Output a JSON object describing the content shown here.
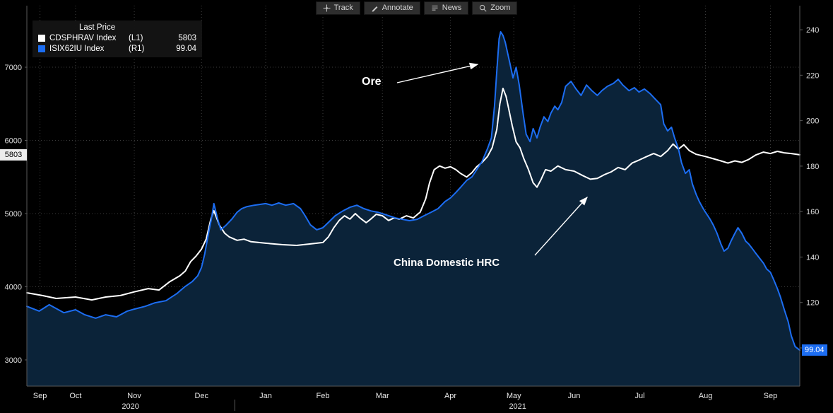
{
  "toolbar": {
    "buttons": [
      {
        "label": "Track"
      },
      {
        "label": "Annotate"
      },
      {
        "label": "News"
      },
      {
        "label": "Zoom"
      }
    ]
  },
  "legend": {
    "title": "Last Price",
    "series": [
      {
        "name": "CDSPHRAV Index",
        "axis": "(L1)",
        "value": "5803",
        "color": "#ffffff"
      },
      {
        "name": "ISIX62IU Index",
        "axis": "(R1)",
        "value": "99.04",
        "color": "#1c6df2"
      }
    ]
  },
  "badges": {
    "left": {
      "value": "5803"
    },
    "right": {
      "value": "99.04"
    }
  },
  "chart_data": {
    "type": "line",
    "title": "",
    "annotations": [
      {
        "text": "Ore"
      },
      {
        "text": "China Domestic HRC"
      }
    ],
    "axes": {
      "left": {
        "ticks": [
          3000,
          4000,
          5000,
          6000,
          7000
        ],
        "domain": [
          2642,
          7841
        ]
      },
      "right": {
        "ticks": [
          100,
          120,
          140,
          160,
          180,
          200,
          220,
          240
        ],
        "domain": [
          83.2,
          250.6
        ]
      }
    },
    "x_ticks": [
      {
        "label": "Sep",
        "f": 0.017
      },
      {
        "label": "Oct",
        "f": 0.063
      },
      {
        "label": "Nov",
        "f": 0.139
      },
      {
        "label": "Dec",
        "f": 0.226
      },
      {
        "label": "Jan",
        "f": 0.309
      },
      {
        "label": "Feb",
        "f": 0.383
      },
      {
        "label": "Mar",
        "f": 0.46
      },
      {
        "label": "Apr",
        "f": 0.548
      },
      {
        "label": "May",
        "f": 0.63
      },
      {
        "label": "Jun",
        "f": 0.708
      },
      {
        "label": "Jul",
        "f": 0.793
      },
      {
        "label": "Aug",
        "f": 0.878
      },
      {
        "label": "Sep",
        "f": 0.962
      }
    ],
    "x_years": [
      {
        "label": "2020",
        "f": 0.134
      },
      {
        "label": "2021",
        "f": 0.635
      }
    ],
    "year_divider_f": 0.269,
    "series": [
      {
        "name": "CDSPHRAV Index",
        "axis": "left",
        "color": "#ffffff",
        "last": 5803,
        "points": [
          [
            0.0,
            3918
          ],
          [
            0.02,
            3880
          ],
          [
            0.038,
            3840
          ],
          [
            0.063,
            3860
          ],
          [
            0.084,
            3820
          ],
          [
            0.102,
            3860
          ],
          [
            0.121,
            3880
          ],
          [
            0.139,
            3930
          ],
          [
            0.157,
            3975
          ],
          [
            0.171,
            3955
          ],
          [
            0.185,
            4070
          ],
          [
            0.198,
            4150
          ],
          [
            0.205,
            4215
          ],
          [
            0.212,
            4345
          ],
          [
            0.219,
            4420
          ],
          [
            0.226,
            4515
          ],
          [
            0.232,
            4650
          ],
          [
            0.238,
            4925
          ],
          [
            0.242,
            5040
          ],
          [
            0.249,
            4845
          ],
          [
            0.256,
            4730
          ],
          [
            0.262,
            4680
          ],
          [
            0.272,
            4635
          ],
          [
            0.281,
            4650
          ],
          [
            0.29,
            4615
          ],
          [
            0.309,
            4595
          ],
          [
            0.331,
            4575
          ],
          [
            0.349,
            4565
          ],
          [
            0.367,
            4585
          ],
          [
            0.383,
            4605
          ],
          [
            0.39,
            4680
          ],
          [
            0.397,
            4805
          ],
          [
            0.404,
            4905
          ],
          [
            0.411,
            4970
          ],
          [
            0.418,
            4925
          ],
          [
            0.425,
            5000
          ],
          [
            0.431,
            4940
          ],
          [
            0.439,
            4875
          ],
          [
            0.445,
            4925
          ],
          [
            0.452,
            4990
          ],
          [
            0.46,
            4970
          ],
          [
            0.468,
            4905
          ],
          [
            0.475,
            4940
          ],
          [
            0.482,
            4925
          ],
          [
            0.491,
            4970
          ],
          [
            0.5,
            4940
          ],
          [
            0.509,
            5020
          ],
          [
            0.516,
            5200
          ],
          [
            0.521,
            5420
          ],
          [
            0.527,
            5600
          ],
          [
            0.534,
            5650
          ],
          [
            0.541,
            5620
          ],
          [
            0.548,
            5640
          ],
          [
            0.555,
            5600
          ],
          [
            0.561,
            5550
          ],
          [
            0.569,
            5500
          ],
          [
            0.576,
            5560
          ],
          [
            0.582,
            5640
          ],
          [
            0.589,
            5700
          ],
          [
            0.596,
            5780
          ],
          [
            0.602,
            5900
          ],
          [
            0.608,
            6150
          ],
          [
            0.612,
            6500
          ],
          [
            0.616,
            6710
          ],
          [
            0.62,
            6600
          ],
          [
            0.623,
            6450
          ],
          [
            0.628,
            6200
          ],
          [
            0.633,
            5980
          ],
          [
            0.638,
            5900
          ],
          [
            0.643,
            5750
          ],
          [
            0.649,
            5600
          ],
          [
            0.655,
            5420
          ],
          [
            0.66,
            5360
          ],
          [
            0.665,
            5460
          ],
          [
            0.671,
            5600
          ],
          [
            0.678,
            5580
          ],
          [
            0.687,
            5650
          ],
          [
            0.697,
            5600
          ],
          [
            0.708,
            5580
          ],
          [
            0.719,
            5520
          ],
          [
            0.729,
            5470
          ],
          [
            0.738,
            5480
          ],
          [
            0.747,
            5530
          ],
          [
            0.756,
            5570
          ],
          [
            0.765,
            5630
          ],
          [
            0.774,
            5600
          ],
          [
            0.783,
            5690
          ],
          [
            0.792,
            5730
          ],
          [
            0.802,
            5780
          ],
          [
            0.811,
            5820
          ],
          [
            0.82,
            5780
          ],
          [
            0.829,
            5860
          ],
          [
            0.836,
            5950
          ],
          [
            0.843,
            5880
          ],
          [
            0.85,
            5940
          ],
          [
            0.857,
            5860
          ],
          [
            0.866,
            5810
          ],
          [
            0.878,
            5780
          ],
          [
            0.888,
            5750
          ],
          [
            0.898,
            5720
          ],
          [
            0.907,
            5690
          ],
          [
            0.916,
            5720
          ],
          [
            0.925,
            5700
          ],
          [
            0.934,
            5740
          ],
          [
            0.943,
            5800
          ],
          [
            0.953,
            5840
          ],
          [
            0.962,
            5820
          ],
          [
            0.971,
            5850
          ],
          [
            0.98,
            5830
          ],
          [
            0.989,
            5820
          ],
          [
            1.0,
            5803
          ]
        ]
      },
      {
        "name": "ISIX62IU Index",
        "axis": "right",
        "color": "#1c6df2",
        "fill": "#0b2339",
        "last": 99.04,
        "points": [
          [
            0.0,
            118.3
          ],
          [
            0.016,
            116.2
          ],
          [
            0.029,
            119.0
          ],
          [
            0.048,
            115.5
          ],
          [
            0.063,
            116.8
          ],
          [
            0.075,
            114.6
          ],
          [
            0.089,
            113.1
          ],
          [
            0.102,
            114.6
          ],
          [
            0.116,
            113.7
          ],
          [
            0.13,
            116.2
          ],
          [
            0.139,
            117.1
          ],
          [
            0.153,
            118.3
          ],
          [
            0.166,
            119.9
          ],
          [
            0.18,
            120.8
          ],
          [
            0.194,
            123.9
          ],
          [
            0.205,
            127.1
          ],
          [
            0.214,
            129.2
          ],
          [
            0.221,
            131.7
          ],
          [
            0.226,
            135.4
          ],
          [
            0.23,
            141.1
          ],
          [
            0.235,
            150.4
          ],
          [
            0.239,
            157.3
          ],
          [
            0.242,
            163.5
          ],
          [
            0.247,
            156.6
          ],
          [
            0.251,
            152.0
          ],
          [
            0.258,
            154.1
          ],
          [
            0.265,
            156.6
          ],
          [
            0.272,
            159.7
          ],
          [
            0.278,
            161.3
          ],
          [
            0.285,
            162.2
          ],
          [
            0.294,
            162.8
          ],
          [
            0.309,
            163.5
          ],
          [
            0.317,
            162.8
          ],
          [
            0.326,
            163.8
          ],
          [
            0.335,
            162.8
          ],
          [
            0.345,
            163.5
          ],
          [
            0.354,
            161.3
          ],
          [
            0.36,
            158.2
          ],
          [
            0.367,
            154.1
          ],
          [
            0.375,
            152.0
          ],
          [
            0.383,
            152.9
          ],
          [
            0.39,
            155.2
          ],
          [
            0.399,
            158.2
          ],
          [
            0.409,
            160.3
          ],
          [
            0.418,
            161.9
          ],
          [
            0.427,
            162.8
          ],
          [
            0.436,
            161.3
          ],
          [
            0.445,
            160.3
          ],
          [
            0.454,
            159.7
          ],
          [
            0.46,
            159.1
          ],
          [
            0.468,
            158.2
          ],
          [
            0.477,
            157.2
          ],
          [
            0.486,
            156.6
          ],
          [
            0.495,
            156.0
          ],
          [
            0.505,
            156.6
          ],
          [
            0.514,
            158.2
          ],
          [
            0.523,
            159.7
          ],
          [
            0.532,
            161.3
          ],
          [
            0.541,
            164.4
          ],
          [
            0.548,
            166.0
          ],
          [
            0.555,
            168.4
          ],
          [
            0.561,
            170.6
          ],
          [
            0.569,
            173.7
          ],
          [
            0.576,
            175.3
          ],
          [
            0.582,
            178.4
          ],
          [
            0.589,
            182.1
          ],
          [
            0.596,
            187.7
          ],
          [
            0.601,
            192.4
          ],
          [
            0.605,
            206.4
          ],
          [
            0.608,
            222.0
          ],
          [
            0.611,
            236.0
          ],
          [
            0.613,
            239.1
          ],
          [
            0.616,
            237.5
          ],
          [
            0.619,
            234.4
          ],
          [
            0.622,
            229.7
          ],
          [
            0.625,
            225.1
          ],
          [
            0.629,
            218.8
          ],
          [
            0.633,
            223.5
          ],
          [
            0.637,
            215.7
          ],
          [
            0.642,
            203.3
          ],
          [
            0.646,
            194.0
          ],
          [
            0.651,
            190.8
          ],
          [
            0.655,
            196.5
          ],
          [
            0.66,
            192.4
          ],
          [
            0.664,
            197.1
          ],
          [
            0.669,
            201.7
          ],
          [
            0.674,
            199.6
          ],
          [
            0.678,
            203.3
          ],
          [
            0.683,
            206.4
          ],
          [
            0.687,
            204.8
          ],
          [
            0.692,
            208.0
          ],
          [
            0.697,
            215.1
          ],
          [
            0.704,
            217.3
          ],
          [
            0.71,
            214.2
          ],
          [
            0.717,
            211.1
          ],
          [
            0.724,
            215.7
          ],
          [
            0.731,
            213.2
          ],
          [
            0.738,
            211.1
          ],
          [
            0.744,
            213.2
          ],
          [
            0.751,
            215.1
          ],
          [
            0.759,
            216.4
          ],
          [
            0.765,
            218.2
          ],
          [
            0.771,
            215.7
          ],
          [
            0.779,
            213.2
          ],
          [
            0.786,
            214.5
          ],
          [
            0.792,
            212.6
          ],
          [
            0.799,
            213.9
          ],
          [
            0.806,
            212.0
          ],
          [
            0.813,
            209.5
          ],
          [
            0.82,
            207.0
          ],
          [
            0.824,
            198.6
          ],
          [
            0.829,
            195.5
          ],
          [
            0.834,
            197.1
          ],
          [
            0.838,
            192.4
          ],
          [
            0.843,
            187.7
          ],
          [
            0.847,
            181.5
          ],
          [
            0.852,
            176.8
          ],
          [
            0.857,
            178.4
          ],
          [
            0.861,
            172.2
          ],
          [
            0.866,
            167.5
          ],
          [
            0.87,
            164.4
          ],
          [
            0.875,
            161.3
          ],
          [
            0.878,
            159.7
          ],
          [
            0.884,
            156.6
          ],
          [
            0.888,
            154.1
          ],
          [
            0.893,
            150.4
          ],
          [
            0.898,
            145.7
          ],
          [
            0.902,
            142.6
          ],
          [
            0.907,
            143.9
          ],
          [
            0.911,
            147.0
          ],
          [
            0.916,
            150.4
          ],
          [
            0.92,
            152.9
          ],
          [
            0.925,
            150.4
          ],
          [
            0.93,
            147.0
          ],
          [
            0.934,
            145.7
          ],
          [
            0.939,
            143.5
          ],
          [
            0.943,
            141.7
          ],
          [
            0.948,
            139.5
          ],
          [
            0.953,
            137.3
          ],
          [
            0.957,
            134.8
          ],
          [
            0.962,
            133.3
          ],
          [
            0.966,
            130.2
          ],
          [
            0.971,
            126.1
          ],
          [
            0.975,
            122.4
          ],
          [
            0.98,
            116.8
          ],
          [
            0.985,
            111.5
          ],
          [
            0.989,
            105.3
          ],
          [
            0.994,
            100.6
          ],
          [
            1.0,
            99.0
          ]
        ]
      }
    ]
  }
}
